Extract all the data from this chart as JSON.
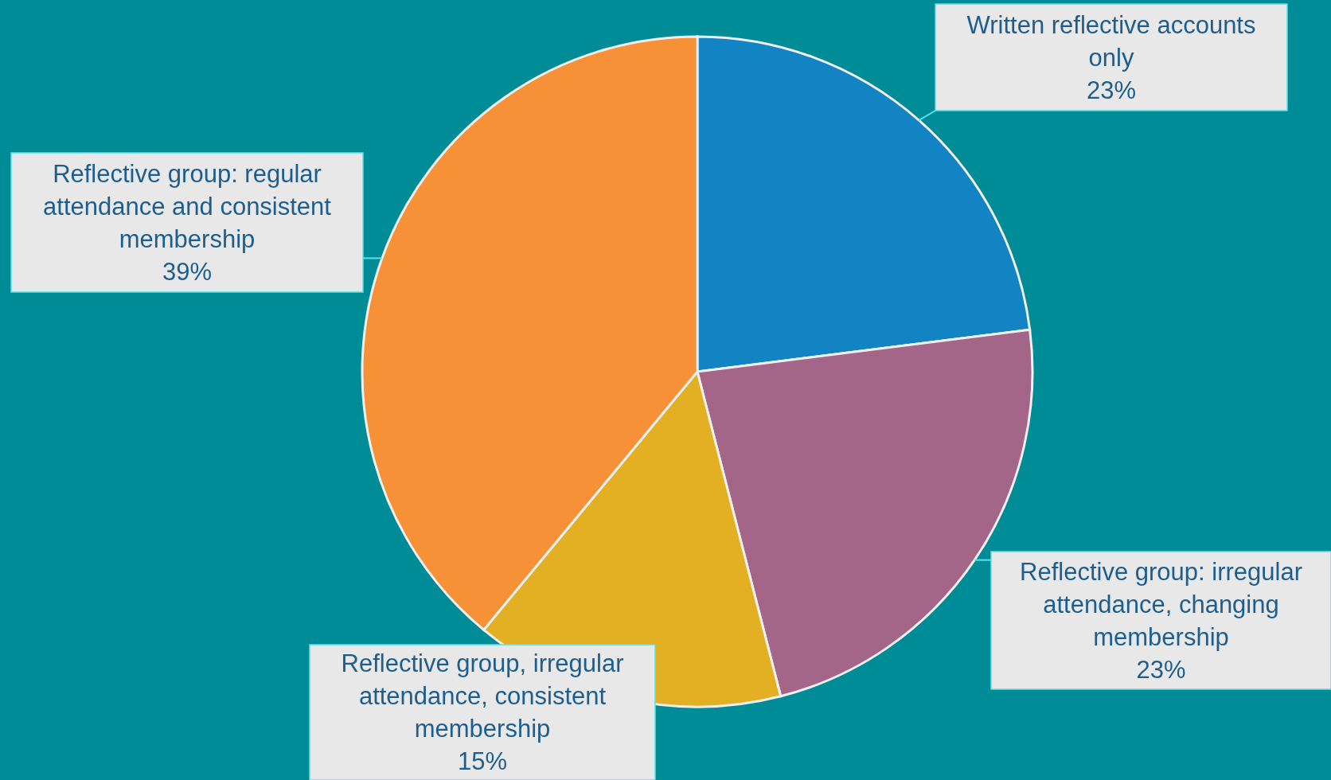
{
  "chart_data": {
    "type": "pie",
    "categories": [
      "Written reflective accounts only",
      "Reflective group: irregular attendance, changing membership",
      "Reflective group, irregular attendance, consistent membership",
      "Reflective group: regular attendance and consistent membership"
    ],
    "values": [
      23,
      23,
      15,
      39
    ],
    "colors": [
      "#1283c3",
      "#a46688",
      "#e3b023",
      "#f69138"
    ],
    "value_labels": [
      "23%",
      "23%",
      "15%",
      "39%"
    ]
  }
}
